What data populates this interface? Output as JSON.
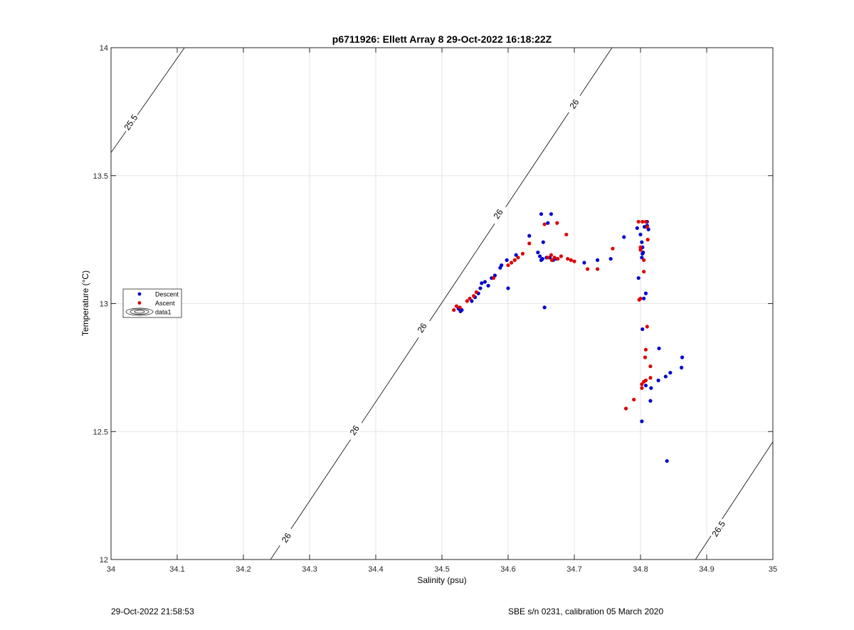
{
  "chart_data": {
    "type": "scatter",
    "title": "p6711926: Ellett Array 8 29-Oct-2022 16:18:22Z",
    "xlabel": "Salinity (psu)",
    "ylabel": "Temperature (°C)",
    "xlim": [
      34,
      35
    ],
    "ylim": [
      12,
      14
    ],
    "x_ticks": [
      34,
      34.1,
      34.2,
      34.3,
      34.4,
      34.5,
      34.6,
      34.7,
      34.8,
      34.9,
      35
    ],
    "x_tick_labels": [
      "34",
      "34.1",
      "34.2",
      "34.3",
      "34.4",
      "34.5",
      "34.6",
      "34.7",
      "34.8",
      "34.9",
      "35"
    ],
    "y_ticks": [
      12,
      12.5,
      13,
      13.5,
      14
    ],
    "y_tick_labels": [
      "12",
      "12.5",
      "13",
      "13.5",
      "14"
    ],
    "grid": true,
    "legend_position": "left-middle",
    "legend": [
      {
        "label": "Descent",
        "type": "dot",
        "color": "#0000cc"
      },
      {
        "label": "Ascent",
        "type": "dot",
        "color": "#dd0000"
      },
      {
        "label": "data1",
        "type": "contour",
        "color": "#000000"
      }
    ],
    "contours": [
      {
        "level_label": "25.5",
        "points": [
          [
            34.0,
            13.59
          ],
          [
            34.111,
            14.0
          ]
        ],
        "labels": [
          {
            "text": "25.5",
            "x": 34.03,
            "y": 13.708
          }
        ]
      },
      {
        "level_label": "26",
        "points": [
          [
            34.241,
            12.0
          ],
          [
            34.757,
            14.0
          ]
        ],
        "labels": [
          {
            "text": "26",
            "x": 34.7,
            "y": 13.78
          },
          {
            "text": "26",
            "x": 34.585,
            "y": 13.35
          },
          {
            "text": "26",
            "x": 34.47,
            "y": 12.905
          },
          {
            "text": "26",
            "x": 34.368,
            "y": 12.505
          },
          {
            "text": "26",
            "x": 34.265,
            "y": 12.085
          }
        ]
      },
      {
        "level_label": "26.5",
        "points": [
          [
            34.883,
            12.0
          ],
          [
            35.0,
            12.46
          ]
        ],
        "labels": [
          {
            "text": "26.5",
            "x": 34.918,
            "y": 12.12
          }
        ]
      }
    ],
    "series": [
      {
        "name": "Descent",
        "color": "#0000cc",
        "points": [
          [
            34.525,
            12.98
          ],
          [
            34.528,
            12.97
          ],
          [
            34.53,
            12.975
          ],
          [
            34.545,
            13.01
          ],
          [
            34.55,
            13.025
          ],
          [
            34.555,
            13.04
          ],
          [
            34.558,
            13.06
          ],
          [
            34.56,
            13.08
          ],
          [
            34.565,
            13.085
          ],
          [
            34.57,
            13.07
          ],
          [
            34.575,
            13.1
          ],
          [
            34.58,
            13.11
          ],
          [
            34.588,
            13.14
          ],
          [
            34.59,
            13.15
          ],
          [
            34.598,
            13.17
          ],
          [
            34.6,
            13.06
          ],
          [
            34.612,
            13.19
          ],
          [
            34.632,
            13.265
          ],
          [
            34.645,
            13.2
          ],
          [
            34.648,
            13.185
          ],
          [
            34.65,
            13.35
          ],
          [
            34.65,
            13.17
          ],
          [
            34.652,
            13.175
          ],
          [
            34.653,
            13.24
          ],
          [
            34.655,
            12.985
          ],
          [
            34.658,
            13.18
          ],
          [
            34.66,
            13.315
          ],
          [
            34.663,
            13.18
          ],
          [
            34.665,
            13.35
          ],
          [
            34.668,
            13.17
          ],
          [
            34.672,
            13.175
          ],
          [
            34.715,
            13.16
          ],
          [
            34.735,
            13.17
          ],
          [
            34.755,
            13.175
          ],
          [
            34.775,
            13.26
          ],
          [
            34.795,
            13.295
          ],
          [
            34.797,
            13.1
          ],
          [
            34.8,
            13.27
          ],
          [
            34.802,
            13.24
          ],
          [
            34.803,
            13.22
          ],
          [
            34.803,
            13.195
          ],
          [
            34.802,
            13.18
          ],
          [
            34.804,
            13.2
          ],
          [
            34.806,
            13.3
          ],
          [
            34.808,
            13.04
          ],
          [
            34.805,
            13.02
          ],
          [
            34.803,
            12.9
          ],
          [
            34.802,
            12.54
          ],
          [
            34.808,
            12.68
          ],
          [
            34.815,
            12.62
          ],
          [
            34.816,
            12.67
          ],
          [
            34.827,
            12.7
          ],
          [
            34.828,
            12.825
          ],
          [
            34.838,
            12.715
          ],
          [
            34.84,
            12.385
          ],
          [
            34.845,
            12.73
          ],
          [
            34.862,
            12.75
          ],
          [
            34.863,
            12.79
          ],
          [
            34.81,
            13.305
          ],
          [
            34.81,
            13.32
          ],
          [
            34.812,
            13.29
          ]
        ]
      },
      {
        "name": "Ascent",
        "color": "#dd0000",
        "points": [
          [
            34.518,
            12.975
          ],
          [
            34.522,
            12.99
          ],
          [
            34.527,
            12.985
          ],
          [
            34.538,
            13.01
          ],
          [
            34.542,
            13.02
          ],
          [
            34.548,
            13.03
          ],
          [
            34.552,
            13.045
          ],
          [
            34.578,
            13.1
          ],
          [
            34.6,
            13.15
          ],
          [
            34.605,
            13.16
          ],
          [
            34.61,
            13.17
          ],
          [
            34.615,
            13.18
          ],
          [
            34.622,
            13.195
          ],
          [
            34.632,
            13.235
          ],
          [
            34.655,
            13.31
          ],
          [
            34.66,
            13.18
          ],
          [
            34.665,
            13.19
          ],
          [
            34.666,
            13.17
          ],
          [
            34.67,
            13.18
          ],
          [
            34.674,
            13.315
          ],
          [
            34.675,
            13.175
          ],
          [
            34.68,
            13.185
          ],
          [
            34.688,
            13.27
          ],
          [
            34.69,
            13.175
          ],
          [
            34.695,
            13.17
          ],
          [
            34.7,
            13.165
          ],
          [
            34.72,
            13.135
          ],
          [
            34.735,
            13.135
          ],
          [
            34.758,
            13.215
          ],
          [
            34.797,
            13.32
          ],
          [
            34.8,
            13.22
          ],
          [
            34.8,
            13.21
          ],
          [
            34.803,
            13.32
          ],
          [
            34.805,
            13.17
          ],
          [
            34.805,
            13.125
          ],
          [
            34.808,
            13.32
          ],
          [
            34.81,
            13.3
          ],
          [
            34.811,
            13.25
          ],
          [
            34.798,
            13.015
          ],
          [
            34.8,
            13.02
          ],
          [
            34.81,
            12.91
          ],
          [
            34.808,
            12.82
          ],
          [
            34.807,
            12.79
          ],
          [
            34.815,
            12.755
          ],
          [
            34.815,
            12.71
          ],
          [
            34.808,
            12.7
          ],
          [
            34.805,
            12.695
          ],
          [
            34.802,
            12.685
          ],
          [
            34.802,
            12.67
          ],
          [
            34.79,
            12.625
          ],
          [
            34.778,
            12.59
          ]
        ]
      }
    ]
  },
  "footer": {
    "timestamp": "29-Oct-2022 21:58:53",
    "instrument": "SBE s/n 0231, calibration 05 March 2020"
  }
}
